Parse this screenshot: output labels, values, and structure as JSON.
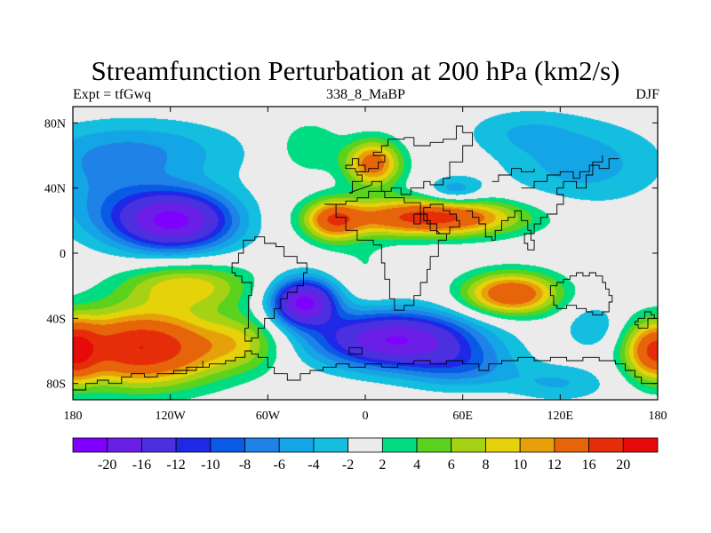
{
  "chart_data": {
    "type": "heatmap",
    "title": "Streamfunction Perturbation at 200 hPa (km2/s)",
    "left_string": "Expt = tfGwq",
    "center_string": "338_8_MaBP",
    "right_string": "DJF",
    "x_range": [
      -180,
      180
    ],
    "y_range": [
      -90,
      90
    ],
    "x_ticks": [
      {
        "value": -180,
        "label": "180"
      },
      {
        "value": -120,
        "label": "120W"
      },
      {
        "value": -60,
        "label": "60W"
      },
      {
        "value": 0,
        "label": "0"
      },
      {
        "value": 60,
        "label": "60E"
      },
      {
        "value": 120,
        "label": "120E"
      },
      {
        "value": 180,
        "label": "180"
      }
    ],
    "y_ticks": [
      {
        "value": 80,
        "label": "80N"
      },
      {
        "value": 40,
        "label": "40N"
      },
      {
        "value": 0,
        "label": "0"
      },
      {
        "value": -40,
        "label": "40S"
      },
      {
        "value": -80,
        "label": "80S"
      }
    ],
    "contour_levels": [
      -20,
      -16,
      -12,
      -10,
      -8,
      -6,
      -4,
      -2,
      2,
      4,
      6,
      8,
      10,
      12,
      16,
      20
    ],
    "colorbar_labels": [
      "-20",
      "-16",
      "-12",
      "-10",
      "-8",
      "-6",
      "-4",
      "-2",
      "2",
      "4",
      "6",
      "8",
      "10",
      "12",
      "16",
      "20"
    ],
    "colors": [
      "#7f00ff",
      "#6a1ee6",
      "#4b30e0",
      "#1e28e6",
      "#0a5ae6",
      "#1e82e6",
      "#14a5e6",
      "#14bede",
      "#ebebeb",
      "#00dc82",
      "#5ad21e",
      "#a5d214",
      "#e6d20a",
      "#e6a00a",
      "#e6640a",
      "#e62d0a",
      "#e60a0a"
    ],
    "blobs": [
      {
        "lon": -140,
        "lat": 62,
        "a": -6,
        "sx": 45,
        "sy": 14
      },
      {
        "lon": -118,
        "lat": 20,
        "a": -21,
        "sx": 26,
        "sy": 13
      },
      {
        "lon": -165,
        "lat": 35,
        "a": -4,
        "sx": 25,
        "sy": 18
      },
      {
        "lon": -110,
        "lat": -20,
        "a": 9,
        "sx": 28,
        "sy": 10
      },
      {
        "lon": -138,
        "lat": -58,
        "a": 20,
        "sx": 34,
        "sy": 16
      },
      {
        "lon": -75,
        "lat": -55,
        "a": 6,
        "sx": 18,
        "sy": 12
      },
      {
        "lon": -38,
        "lat": -30,
        "a": -21,
        "sx": 14,
        "sy": 10
      },
      {
        "lon": 18,
        "lat": -53,
        "a": -20,
        "sx": 34,
        "sy": 12
      },
      {
        "lon": 60,
        "lat": -70,
        "a": -6,
        "sx": 25,
        "sy": 10
      },
      {
        "lon": -20,
        "lat": 20,
        "a": 12,
        "sx": 12,
        "sy": 9
      },
      {
        "lon": 40,
        "lat": 22,
        "a": 18,
        "sx": 38,
        "sy": 8
      },
      {
        "lon": 5,
        "lat": 55,
        "a": 14,
        "sx": 12,
        "sy": 10
      },
      {
        "lon": -35,
        "lat": 65,
        "a": 4,
        "sx": 15,
        "sy": 12
      },
      {
        "lon": 55,
        "lat": 38,
        "a": -6,
        "sx": 12,
        "sy": 6
      },
      {
        "lon": 135,
        "lat": 55,
        "a": -5,
        "sx": 35,
        "sy": 18
      },
      {
        "lon": 95,
        "lat": 75,
        "a": -3,
        "sx": 25,
        "sy": 10
      },
      {
        "lon": 90,
        "lat": -25,
        "a": 16,
        "sx": 20,
        "sy": 9
      },
      {
        "lon": 140,
        "lat": -45,
        "a": -4,
        "sx": 12,
        "sy": 10
      },
      {
        "lon": 180,
        "lat": -60,
        "a": 18,
        "sx": 14,
        "sy": 13
      },
      {
        "lon": -180,
        "lat": -60,
        "a": 14,
        "sx": 10,
        "sy": 13
      },
      {
        "lon": 120,
        "lat": -80,
        "a": -4,
        "sx": 22,
        "sy": 8
      },
      {
        "lon": 0,
        "lat": -8,
        "a": 2,
        "sx": 14,
        "sy": 14
      }
    ]
  }
}
